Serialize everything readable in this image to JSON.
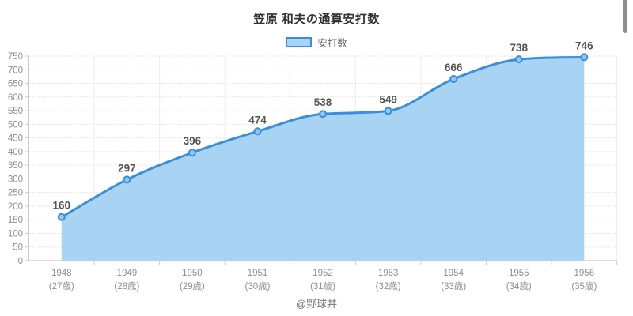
{
  "title": "笠原 和夫の通算安打数",
  "legend": {
    "label": "安打数"
  },
  "footer": "@野球丼",
  "colors": {
    "line": "#3a8fd8",
    "area": "#a8d3f2",
    "marker_fill": "#8ec7f0",
    "data_label": "#555555",
    "axis_label": "#8e8e8e",
    "grid_h": "#e2e2e2",
    "grid_v": "#ededed",
    "axis_line": "#c9c9c9",
    "title_color": "#333333",
    "legend_label_color": "#666666",
    "footer_color": "#757575",
    "scrollbar": "#8f8f8f"
  },
  "chart_data": {
    "type": "area",
    "title": "笠原 和夫の通算安打数",
    "categories": [
      "1948",
      "1949",
      "1950",
      "1951",
      "1952",
      "1953",
      "1954",
      "1955",
      "1956"
    ],
    "category_sublabels": [
      "(27歳)",
      "(28歳)",
      "(29歳)",
      "(30歳)",
      "(31歳)",
      "(32歳)",
      "(33歳)",
      "(34歳)",
      "(35歳)"
    ],
    "series": [
      {
        "name": "安打数",
        "values": [
          160,
          297,
          396,
          474,
          538,
          549,
          666,
          738,
          746
        ]
      }
    ],
    "data_labels": [
      "160",
      "297",
      "396",
      "474",
      "538",
      "549",
      "666",
      "738",
      "746"
    ],
    "ylim": [
      0,
      750
    ],
    "yticks": [
      0,
      50,
      100,
      150,
      200,
      250,
      300,
      350,
      400,
      450,
      500,
      550,
      600,
      650,
      700,
      750
    ],
    "grid": true,
    "legend_position": "top",
    "smoothing": "monotone"
  }
}
